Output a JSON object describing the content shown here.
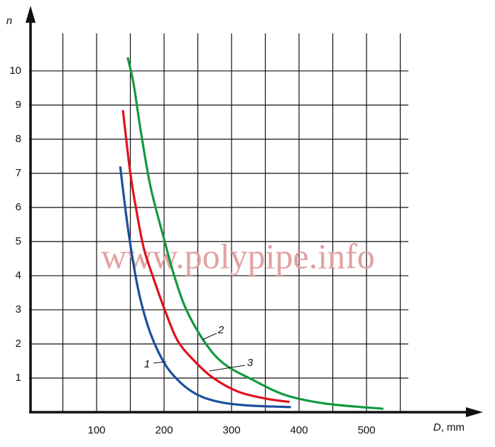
{
  "chart_data": {
    "type": "line",
    "y_label": "n",
    "x_label": "D",
    "x_unit": ", mm",
    "watermark": "www.polypipe.info",
    "xlim": [
      0,
      562
    ],
    "ylim": [
      0,
      11.1
    ],
    "xticks": [
      100,
      200,
      300,
      400,
      500
    ],
    "xgrid": [
      50,
      150,
      250,
      350,
      450,
      550
    ],
    "yticks": [
      1,
      2,
      3,
      4,
      5,
      6,
      7,
      8,
      9,
      10
    ],
    "grid": true,
    "series": [
      {
        "name": "1",
        "color": "#1a4f9c",
        "x": [
          135,
          145,
          155,
          165,
          180,
          200,
          220,
          240,
          260,
          290,
          330,
          388
        ],
        "values": [
          7.2,
          5.6,
          4.3,
          3.3,
          2.3,
          1.45,
          0.95,
          0.62,
          0.42,
          0.27,
          0.19,
          0.15
        ]
      },
      {
        "name": "2",
        "color": "#139a3e",
        "x": [
          146,
          155,
          165,
          180,
          201,
          215,
          233,
          262,
          290,
          331,
          380,
          440,
          525
        ],
        "values": [
          10.4,
          9.6,
          8.3,
          6.6,
          5.0,
          4.0,
          3.0,
          2.0,
          1.4,
          0.95,
          0.5,
          0.25,
          0.1
        ]
      },
      {
        "name": "3",
        "color": "#e0101e",
        "x": [
          139,
          150,
          160,
          170,
          183,
          201,
          220,
          245,
          273,
          310,
          350,
          386
        ],
        "values": [
          8.85,
          7.0,
          5.8,
          4.8,
          4.0,
          3.0,
          2.1,
          1.5,
          1.0,
          0.6,
          0.4,
          0.3
        ]
      }
    ]
  }
}
